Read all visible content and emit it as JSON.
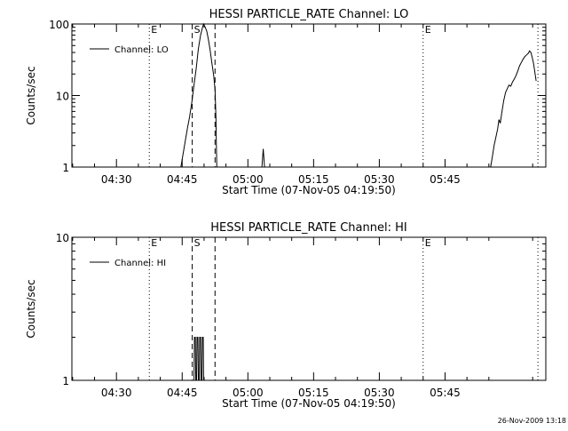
{
  "footer_timestamp": "26-Nov-2009 13:18",
  "chart_data": [
    {
      "type": "line",
      "title": "HESSI PARTICLE_RATE Channel: LO",
      "xlabel": "Start Time (07-Nov-05 04:19:50)",
      "ylabel": "Counts/sec",
      "y_scale": "log",
      "ylim": [
        1,
        100
      ],
      "y_ticks": [
        {
          "value": 1,
          "label": "1"
        },
        {
          "value": 10,
          "label": "10"
        },
        {
          "value": 100,
          "label": "100"
        }
      ],
      "xlim": [
        "04:19:50",
        "06:08:00"
      ],
      "x_ticks": [
        "04:30",
        "04:45",
        "05:00",
        "05:15",
        "05:30",
        "05:45"
      ],
      "x_tick_minutes": [
        270,
        285,
        300,
        315,
        330,
        345
      ],
      "x_range_minutes": [
        259.83,
        368
      ],
      "legend": {
        "position": "top-left",
        "entries": [
          "Channel: LO"
        ]
      },
      "markers": [
        {
          "time_min": 277.5,
          "style": "dotted",
          "label": "E"
        },
        {
          "time_min": 287.3,
          "style": "dashed",
          "label": "S"
        },
        {
          "time_min": 292.5,
          "style": "dashed",
          "label": ""
        },
        {
          "time_min": 340.0,
          "style": "dotted",
          "label": "E"
        },
        {
          "time_min": 366.2,
          "style": "dotted",
          "label": ""
        }
      ],
      "series": [
        {
          "name": "Channel: LO",
          "segments": [
            [
              [
                284.7,
                1
              ],
              [
                285.2,
                1.5
              ],
              [
                285.7,
                2.3
              ],
              [
                286.2,
                3.5
              ],
              [
                286.7,
                5
              ],
              [
                287.2,
                8
              ],
              [
                287.7,
                14
              ],
              [
                288.2,
                24
              ],
              [
                288.7,
                45
              ],
              [
                289.2,
                70
              ],
              [
                289.6,
                88
              ],
              [
                289.9,
                100
              ],
              [
                290.2,
                92
              ],
              [
                290.6,
                80
              ],
              [
                291.0,
                60
              ],
              [
                291.4,
                42
              ],
              [
                291.8,
                28
              ],
              [
                292.2,
                19
              ],
              [
                292.5,
                12
              ],
              [
                292.7,
                5
              ],
              [
                292.8,
                2
              ],
              [
                292.9,
                1
              ]
            ],
            [
              [
                303.2,
                1
              ],
              [
                303.5,
                1.8
              ],
              [
                303.8,
                1
              ]
            ],
            [
              [
                355.4,
                1
              ],
              [
                355.8,
                1.4
              ],
              [
                356.2,
                2
              ],
              [
                356.6,
                2.6
              ],
              [
                357.0,
                3.4
              ],
              [
                357.3,
                4.6
              ],
              [
                357.6,
                4.1
              ],
              [
                358.0,
                6
              ],
              [
                358.4,
                8.5
              ],
              [
                358.8,
                11
              ],
              [
                359.2,
                12.5
              ],
              [
                359.6,
                14
              ],
              [
                360.0,
                13.5
              ],
              [
                360.4,
                15.5
              ],
              [
                360.8,
                17
              ],
              [
                361.2,
                19
              ],
              [
                361.6,
                22
              ],
              [
                362.0,
                26
              ],
              [
                362.4,
                29
              ],
              [
                362.8,
                32
              ],
              [
                363.2,
                35
              ],
              [
                363.6,
                37
              ],
              [
                364.0,
                39
              ],
              [
                364.3,
                42
              ],
              [
                364.6,
                40
              ],
              [
                364.9,
                34
              ],
              [
                365.2,
                28
              ],
              [
                365.5,
                21
              ],
              [
                365.8,
                16
              ]
            ]
          ]
        }
      ]
    },
    {
      "type": "line",
      "title": "HESSI PARTICLE_RATE Channel: HI",
      "xlabel": "Start Time (07-Nov-05 04:19:50)",
      "ylabel": "Counts/sec",
      "y_scale": "log",
      "ylim": [
        1,
        10
      ],
      "y_ticks": [
        {
          "value": 1,
          "label": "1"
        },
        {
          "value": 10,
          "label": "10"
        }
      ],
      "xlim": [
        "04:19:50",
        "06:08:00"
      ],
      "x_ticks": [
        "04:30",
        "04:45",
        "05:00",
        "05:15",
        "05:30",
        "05:45"
      ],
      "x_tick_minutes": [
        270,
        285,
        300,
        315,
        330,
        345
      ],
      "x_range_minutes": [
        259.83,
        368
      ],
      "legend": {
        "position": "top-left",
        "entries": [
          "Channel: HI"
        ]
      },
      "markers": [
        {
          "time_min": 277.5,
          "style": "dotted",
          "label": "E"
        },
        {
          "time_min": 287.3,
          "style": "dashed",
          "label": "S"
        },
        {
          "time_min": 292.5,
          "style": "dashed",
          "label": ""
        },
        {
          "time_min": 340.0,
          "style": "dotted",
          "label": "E"
        },
        {
          "time_min": 366.2,
          "style": "dotted",
          "label": ""
        }
      ],
      "series": [
        {
          "name": "Channel: HI",
          "segments": [
            [
              [
                287.7,
                1
              ],
              [
                287.8,
                2
              ],
              [
                288.0,
                2
              ],
              [
                288.1,
                1
              ],
              [
                288.3,
                1
              ],
              [
                288.4,
                2
              ],
              [
                288.6,
                2
              ],
              [
                288.7,
                1
              ],
              [
                288.9,
                1
              ],
              [
                289.0,
                2
              ],
              [
                289.2,
                2
              ],
              [
                289.3,
                1
              ],
              [
                289.5,
                1
              ],
              [
                289.6,
                2
              ],
              [
                289.8,
                2
              ],
              [
                289.9,
                1
              ]
            ]
          ]
        }
      ]
    }
  ]
}
